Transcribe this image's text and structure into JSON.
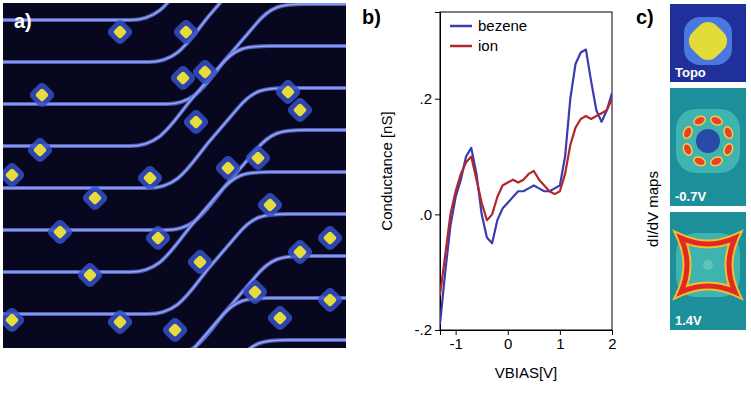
{
  "chart_data": {
    "type": "line",
    "panel_label": "b)",
    "x_label": "VBIAS[V]",
    "y_label": "Conductance [nS]",
    "x": [
      -1.3,
      -1.2,
      -1.1,
      -1.0,
      -0.9,
      -0.8,
      -0.7,
      -0.6,
      -0.5,
      -0.4,
      -0.3,
      -0.2,
      -0.1,
      0.0,
      0.1,
      0.2,
      0.3,
      0.4,
      0.5,
      0.6,
      0.7,
      0.8,
      0.9,
      1.0,
      1.1,
      1.2,
      1.3,
      1.4,
      1.5,
      1.6,
      1.7,
      1.8,
      1.9,
      2.0
    ],
    "series": [
      {
        "name": "bezene",
        "color": "#3b3bb0",
        "values": [
          -0.19,
          -0.1,
          -0.02,
          0.03,
          0.06,
          0.1,
          0.115,
          0.07,
          0.0,
          -0.04,
          -0.05,
          -0.01,
          0.01,
          0.02,
          0.03,
          0.04,
          0.04,
          0.045,
          0.05,
          0.045,
          0.04,
          0.04,
          0.045,
          0.05,
          0.1,
          0.2,
          0.26,
          0.28,
          0.285,
          0.23,
          0.18,
          0.16,
          0.18,
          0.21
        ]
      },
      {
        "name": "ion",
        "color": "#b0282c",
        "values": [
          -0.14,
          -0.07,
          0.0,
          0.04,
          0.07,
          0.09,
          0.1,
          0.06,
          0.02,
          -0.01,
          0.0,
          0.03,
          0.05,
          0.055,
          0.06,
          0.055,
          0.06,
          0.07,
          0.075,
          0.06,
          0.05,
          0.04,
          0.035,
          0.04,
          0.07,
          0.12,
          0.15,
          0.165,
          0.17,
          0.165,
          0.17,
          0.175,
          0.18,
          0.2
        ]
      }
    ],
    "xlim": [
      -1.3,
      2.0
    ],
    "ylim": [
      -0.2,
      0.35
    ],
    "xticks": [
      -1,
      0,
      1,
      2
    ],
    "yticks": [
      {
        "value": -0.2,
        "label": "-.2"
      },
      {
        "value": 0,
        "label": ".0"
      },
      {
        "value": 0.2,
        "label": ".2"
      }
    ],
    "legend": "upper left",
    "grid": false
  },
  "panel_a": {
    "label": "a)"
  },
  "panel_c": {
    "label": "c)",
    "side_label": "dI/dV maps",
    "images": [
      "Topo",
      "-0.7V",
      "1.4V"
    ]
  }
}
